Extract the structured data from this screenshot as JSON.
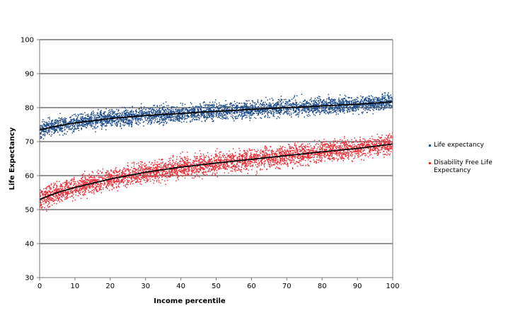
{
  "chart_data": {
    "type": "scatter",
    "title": "",
    "xlabel": "Income percentile",
    "ylabel": "Life Expectancy",
    "xlim": [
      0,
      100
    ],
    "ylim": [
      30,
      100
    ],
    "x_ticks": [
      "0",
      "10",
      "20",
      "30",
      "40",
      "50",
      "60",
      "70",
      "80",
      "90",
      "100"
    ],
    "y_ticks": [
      "30",
      "40",
      "50",
      "60",
      "70",
      "80",
      "90",
      "100"
    ],
    "grid": "horizontal",
    "legend_position": "right",
    "series": [
      {
        "name": "Life expectancy",
        "color": "#1f4e8c",
        "trend": [
          [
            0,
            73.5
          ],
          [
            5,
            74.6
          ],
          [
            10,
            75.5
          ],
          [
            20,
            76.8
          ],
          [
            30,
            77.7
          ],
          [
            40,
            78.3
          ],
          [
            50,
            78.9
          ],
          [
            60,
            79.5
          ],
          [
            70,
            80.0
          ],
          [
            80,
            80.5
          ],
          [
            90,
            81.0
          ],
          [
            100,
            81.7
          ]
        ],
        "spread": 2.2
      },
      {
        "name": "Disability Free Life Expectancy",
        "color": "#e8303a",
        "trend": [
          [
            0,
            53.0
          ],
          [
            5,
            55.0
          ],
          [
            10,
            56.5
          ],
          [
            20,
            59.0
          ],
          [
            30,
            61.0
          ],
          [
            40,
            62.5
          ],
          [
            50,
            63.7
          ],
          [
            60,
            64.8
          ],
          [
            70,
            65.9
          ],
          [
            80,
            67.0
          ],
          [
            90,
            68.0
          ],
          [
            100,
            69.3
          ]
        ],
        "spread": 2.8
      }
    ]
  }
}
